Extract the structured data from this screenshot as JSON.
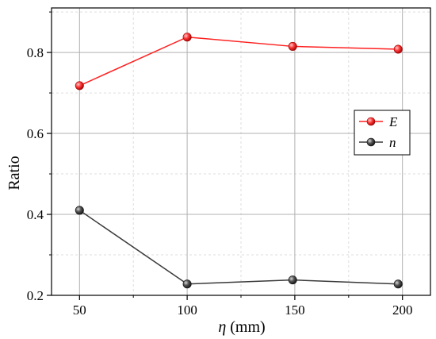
{
  "chart_data": {
    "type": "line",
    "xlabel_symbol": "η",
    "xlabel_unit": " (mm)",
    "ylabel": "Ratio",
    "x": [
      50,
      100,
      150,
      200
    ],
    "xlim": [
      37,
      213
    ],
    "ylim": [
      0.2,
      0.91
    ],
    "xticks": [
      "50",
      "100",
      "150",
      "200"
    ],
    "yticks": [
      "0.2",
      "0.4",
      "0.6",
      "0.8"
    ],
    "grid": true,
    "legend_position": "right",
    "series": [
      {
        "name": "E",
        "color": "#ff2020",
        "marker_color": "#ff3a3a",
        "x": [
          50,
          100,
          149,
          198
        ],
        "values": [
          0.718,
          0.838,
          0.815,
          0.808
        ]
      },
      {
        "name": "n",
        "color": "#3a3a3a",
        "marker_color": "#444444",
        "x": [
          50,
          100,
          149,
          198
        ],
        "values": [
          0.41,
          0.228,
          0.238,
          0.228
        ]
      }
    ]
  }
}
